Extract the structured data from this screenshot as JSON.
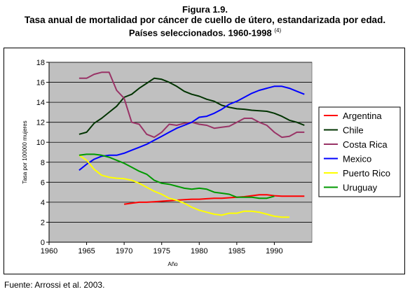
{
  "figure": {
    "number": "Figura 1.9.",
    "title_line1": "Tasa anual de mortalidad por cáncer de cuello de útero, estandarizada por edad.",
    "title_line2": "Países seleccionados. 1960-1998",
    "title_ref": "(4)",
    "source": "Fuente: Arrossi et al. 2003."
  },
  "chart_data": {
    "type": "line",
    "title": "",
    "xlabel": "Año",
    "ylabel": "Tasa por 100000 mujeres",
    "xlim": [
      1960,
      1995
    ],
    "ylim": [
      0,
      18
    ],
    "xticks": [
      1960,
      1965,
      1970,
      1975,
      1980,
      1985,
      1990
    ],
    "yticks": [
      0,
      2,
      4,
      6,
      8,
      10,
      12,
      14,
      16,
      18
    ],
    "grid": "horizontal",
    "plot_background": "#c0c0c0",
    "legend_position": "right",
    "series": [
      {
        "name": "Argentina",
        "color": "#ff0000",
        "x": [
          1970,
          1971,
          1972,
          1973,
          1974,
          1975,
          1976,
          1977,
          1978,
          1979,
          1980,
          1981,
          1982,
          1983,
          1984,
          1985,
          1986,
          1987,
          1988,
          1989,
          1990,
          1991,
          1992,
          1993,
          1994
        ],
        "y": [
          3.8,
          3.9,
          4.0,
          4.0,
          4.05,
          4.1,
          4.15,
          4.2,
          4.25,
          4.3,
          4.3,
          4.35,
          4.4,
          4.4,
          4.45,
          4.5,
          4.55,
          4.65,
          4.75,
          4.75,
          4.65,
          4.6,
          4.6,
          4.6,
          4.6
        ]
      },
      {
        "name": "Chile",
        "color": "#003300",
        "x": [
          1964,
          1965,
          1966,
          1967,
          1968,
          1969,
          1970,
          1971,
          1972,
          1973,
          1974,
          1975,
          1976,
          1977,
          1978,
          1979,
          1980,
          1981,
          1982,
          1983,
          1984,
          1985,
          1986,
          1987,
          1988,
          1989,
          1990,
          1991,
          1992,
          1993,
          1994
        ],
        "y": [
          10.8,
          11.0,
          11.9,
          12.4,
          13.0,
          13.6,
          14.5,
          14.8,
          15.4,
          15.9,
          16.4,
          16.3,
          16.0,
          15.6,
          15.1,
          14.8,
          14.6,
          14.3,
          14.1,
          13.7,
          13.5,
          13.35,
          13.3,
          13.2,
          13.15,
          13.1,
          12.9,
          12.6,
          12.2,
          12.0,
          11.7
        ]
      },
      {
        "name": "Costa Rica",
        "color": "#993366",
        "x": [
          1964,
          1965,
          1966,
          1967,
          1968,
          1969,
          1970,
          1971,
          1972,
          1973,
          1974,
          1975,
          1976,
          1977,
          1978,
          1979,
          1980,
          1981,
          1982,
          1983,
          1984,
          1985,
          1986,
          1987,
          1988,
          1989,
          1990,
          1991,
          1992,
          1993,
          1994
        ],
        "y": [
          16.4,
          16.4,
          16.8,
          17.0,
          17.0,
          15.2,
          14.4,
          12.0,
          11.8,
          10.8,
          10.5,
          11.0,
          11.8,
          11.7,
          11.9,
          12.0,
          11.8,
          11.7,
          11.4,
          11.5,
          11.6,
          12.0,
          12.4,
          12.4,
          12.0,
          11.7,
          11.0,
          10.5,
          10.6,
          11.0,
          11.0
        ]
      },
      {
        "name": "Mexico",
        "color": "#0000ff",
        "x": [
          1964,
          1965,
          1966,
          1967,
          1968,
          1969,
          1970,
          1971,
          1972,
          1973,
          1974,
          1975,
          1976,
          1977,
          1978,
          1979,
          1980,
          1981,
          1982,
          1983,
          1984,
          1985,
          1986,
          1987,
          1988,
          1989,
          1990,
          1991,
          1992,
          1993,
          1994
        ],
        "y": [
          7.2,
          7.8,
          8.3,
          8.6,
          8.7,
          8.7,
          8.9,
          9.2,
          9.5,
          9.8,
          10.2,
          10.6,
          11.0,
          11.4,
          11.7,
          12.0,
          12.5,
          12.6,
          12.9,
          13.3,
          13.8,
          14.1,
          14.5,
          14.9,
          15.2,
          15.4,
          15.6,
          15.6,
          15.4,
          15.1,
          14.8
        ]
      },
      {
        "name": "Puerto Rico",
        "color": "#ffff00",
        "x": [
          1964,
          1965,
          1966,
          1967,
          1968,
          1969,
          1970,
          1971,
          1972,
          1973,
          1974,
          1975,
          1976,
          1977,
          1978,
          1979,
          1980,
          1981,
          1982,
          1983,
          1984,
          1985,
          1986,
          1987,
          1988,
          1989,
          1990,
          1991,
          1992
        ],
        "y": [
          8.7,
          8.2,
          7.3,
          6.7,
          6.5,
          6.4,
          6.35,
          6.2,
          5.9,
          5.5,
          5.1,
          4.8,
          4.4,
          4.2,
          3.9,
          3.5,
          3.2,
          3.0,
          2.8,
          2.7,
          2.9,
          2.9,
          3.1,
          3.1,
          3.0,
          2.8,
          2.6,
          2.5,
          2.5
        ]
      },
      {
        "name": "Uruguay",
        "color": "#009900",
        "x": [
          1964,
          1965,
          1966,
          1967,
          1968,
          1969,
          1970,
          1971,
          1972,
          1973,
          1974,
          1975,
          1976,
          1977,
          1978,
          1979,
          1980,
          1981,
          1982,
          1983,
          1984,
          1985,
          1986,
          1987,
          1988,
          1989,
          1990
        ],
        "y": [
          8.7,
          8.8,
          8.8,
          8.7,
          8.5,
          8.2,
          7.9,
          7.5,
          7.1,
          6.8,
          6.2,
          5.9,
          5.8,
          5.6,
          5.4,
          5.3,
          5.4,
          5.3,
          5.0,
          4.9,
          4.8,
          4.5,
          4.5,
          4.5,
          4.4,
          4.4,
          4.6
        ]
      }
    ]
  }
}
